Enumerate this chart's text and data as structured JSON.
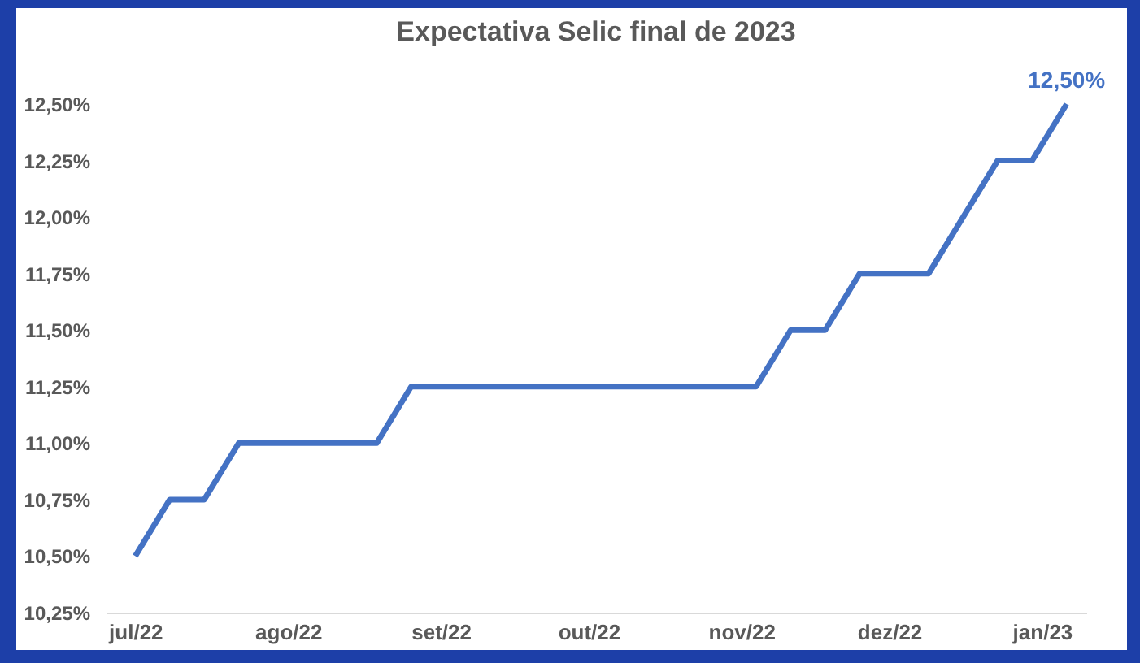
{
  "chart_data": {
    "type": "line",
    "title": "Expectativa Selic final de 2023",
    "x": [
      "2022-07-01",
      "2022-07-08",
      "2022-07-15",
      "2022-07-22",
      "2022-08-19",
      "2022-08-26",
      "2022-11-04",
      "2022-11-11",
      "2022-11-18",
      "2022-11-25",
      "2022-12-09",
      "2022-12-23",
      "2022-12-30",
      "2023-01-06"
    ],
    "series": [
      {
        "color": "#4472c4",
        "values": [
          10.5,
          10.75,
          10.75,
          11.0,
          11.0,
          11.25,
          11.25,
          11.5,
          11.5,
          11.75,
          11.75,
          12.25,
          12.25,
          12.5
        ]
      }
    ],
    "annotations": [
      {
        "text": "12,50%",
        "x": "2023-01-06",
        "y": 12.5
      }
    ],
    "xlim": [
      "2022-06-25",
      "2023-01-10"
    ],
    "xticks": [
      {
        "value": "2022-07-01",
        "label": "jul/22"
      },
      {
        "value": "2022-08-01",
        "label": "ago/22"
      },
      {
        "value": "2022-09-01",
        "label": "set/22"
      },
      {
        "value": "2022-10-01",
        "label": "out/22"
      },
      {
        "value": "2022-11-01",
        "label": "nov/22"
      },
      {
        "value": "2022-12-01",
        "label": "dez/22"
      },
      {
        "value": "2023-01-01",
        "label": "jan/23"
      }
    ],
    "ylim": [
      10.25,
      12.5
    ],
    "yticks": [
      {
        "value": 10.25,
        "label": "10,25%"
      },
      {
        "value": 10.5,
        "label": "10,50%"
      },
      {
        "value": 10.75,
        "label": "10,75%"
      },
      {
        "value": 11.0,
        "label": "11,00%"
      },
      {
        "value": 11.25,
        "label": "11,25%"
      },
      {
        "value": 11.5,
        "label": "11,50%"
      },
      {
        "value": 11.75,
        "label": "11,75%"
      },
      {
        "value": 12.0,
        "label": "12,00%"
      },
      {
        "value": 12.25,
        "label": "12,25%"
      },
      {
        "value": 12.5,
        "label": "12,50%"
      }
    ],
    "grid": false,
    "line_style": "solid",
    "marker": "none"
  }
}
